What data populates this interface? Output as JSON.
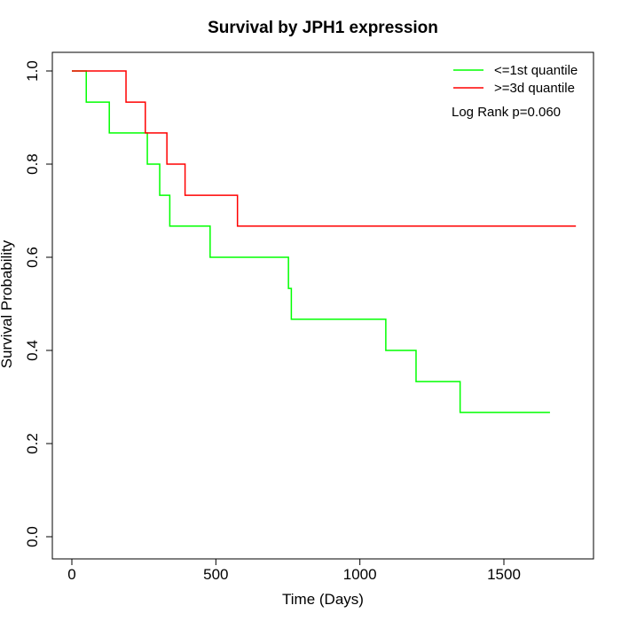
{
  "chart_data": {
    "type": "line",
    "title": "Survival by JPH1 expression",
    "xlabel": "Time (Days)",
    "ylabel": "Survival Probability",
    "xlim": [
      0,
      1750
    ],
    "ylim": [
      0,
      1
    ],
    "x_ticks": [
      0,
      500,
      1000,
      1500
    ],
    "y_ticks": [
      0.0,
      0.2,
      0.4,
      0.6,
      0.8,
      1.0
    ],
    "x_tick_labels": [
      "0",
      "500",
      "1000",
      "1500"
    ],
    "y_tick_labels": [
      "0.0",
      "0.2",
      "0.4",
      "0.6",
      "0.8",
      "1.0"
    ],
    "grid": false,
    "legend_position": "top-right",
    "annotation": "Log Rank p=0.060",
    "series": [
      {
        "name": "<=1st quantile",
        "color": "#00ff00",
        "step": true,
        "x": [
          0,
          50,
          130,
          262,
          305,
          340,
          480,
          752,
          762,
          1090,
          1195,
          1348,
          1660
        ],
        "y": [
          1.0,
          0.933,
          0.867,
          0.8,
          0.733,
          0.667,
          0.6,
          0.533,
          0.467,
          0.4,
          0.333,
          0.267,
          0.267
        ]
      },
      {
        "name": ">=3d quantile",
        "color": "#ff0000",
        "step": true,
        "x": [
          0,
          188,
          255,
          330,
          393,
          575,
          1750
        ],
        "y": [
          1.0,
          0.933,
          0.867,
          0.8,
          0.733,
          0.667,
          0.667
        ]
      }
    ]
  }
}
